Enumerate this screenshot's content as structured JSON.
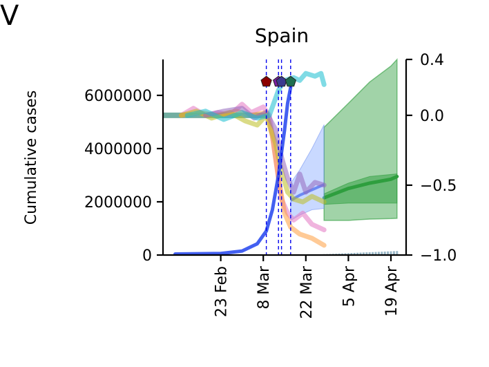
{
  "chart_data": {
    "type": "line",
    "panel_letter": "V",
    "title": "Spain",
    "ylabel": "Cumulative cases",
    "y_left": {
      "min": 0,
      "max": 7350000,
      "ticks": [
        0,
        2000000,
        4000000,
        6000000
      ],
      "tick_labels": [
        "0",
        "2000000",
        "4000000",
        "6000000"
      ]
    },
    "y_right": {
      "min": -1.0,
      "max": 0.4,
      "ticks": [
        -1.0,
        -0.5,
        0.0,
        0.4
      ],
      "tick_labels": [
        "−1.0",
        "−0.5",
        "0.0",
        "0.4"
      ]
    },
    "x": {
      "start": "2020-02-04",
      "end": "2020-04-24",
      "ticks": [
        "2020-02-23",
        "2020-03-08",
        "2020-03-22",
        "2020-04-05",
        "2020-04-19"
      ],
      "tick_labels": [
        "23 Feb",
        "8 Mar",
        "22 Mar",
        "5 Apr",
        "19 Apr"
      ]
    },
    "intervention_dates": [
      "2020-03-09",
      "2020-03-13",
      "2020-03-14",
      "2020-03-17"
    ],
    "intervention_colors": [
      "#8b0000",
      "#7a1fa2",
      "#3b3b8f",
      "#1f6f4f"
    ],
    "cumulative_cases": {
      "color": "#2244ee",
      "points": [
        [
          "2020-02-08",
          40000
        ],
        [
          "2020-02-23",
          60000
        ],
        [
          "2020-03-01",
          150000
        ],
        [
          "2020-03-06",
          420000
        ],
        [
          "2020-03-09",
          900000
        ],
        [
          "2020-03-11",
          1700000
        ],
        [
          "2020-03-13",
          3000000
        ],
        [
          "2020-03-15",
          4700000
        ],
        [
          "2020-03-16",
          5700000
        ],
        [
          "2020-03-17",
          6300000
        ]
      ],
      "lower_band": [
        [
          "2020-03-17",
          1300000
        ],
        [
          "2020-03-20",
          1500000
        ],
        [
          "2020-03-24",
          1700000
        ],
        [
          "2020-03-28",
          1750000
        ]
      ],
      "upper_band": [
        [
          "2020-03-17",
          2700000
        ],
        [
          "2020-03-20",
          3200000
        ],
        [
          "2020-03-24",
          4000000
        ],
        [
          "2020-03-28",
          4900000
        ]
      ],
      "fitted": [
        [
          "2020-03-17",
          2050000
        ],
        [
          "2020-03-20",
          2250000
        ],
        [
          "2020-03-24",
          2450000
        ],
        [
          "2020-03-28",
          2650000
        ]
      ]
    },
    "forecast": {
      "color": "#2e9e3e",
      "lower_band": [
        [
          "2020-03-28",
          1300000
        ],
        [
          "2020-04-05",
          1300000
        ],
        [
          "2020-04-12",
          1350000
        ],
        [
          "2020-04-19",
          1370000
        ],
        [
          "2020-04-21",
          1380000
        ]
      ],
      "upper_band": [
        [
          "2020-03-28",
          4800000
        ],
        [
          "2020-04-05",
          5700000
        ],
        [
          "2020-04-12",
          6500000
        ],
        [
          "2020-04-19",
          7100000
        ],
        [
          "2020-04-21",
          7350000
        ]
      ],
      "inner_lower": [
        [
          "2020-03-28",
          1900000
        ],
        [
          "2020-04-05",
          1950000
        ],
        [
          "2020-04-12",
          1950000
        ],
        [
          "2020-04-21",
          1950000
        ]
      ],
      "inner_upper": [
        [
          "2020-03-28",
          2300000
        ],
        [
          "2020-04-05",
          2700000
        ],
        [
          "2020-04-12",
          2950000
        ],
        [
          "2020-04-21",
          3050000
        ]
      ],
      "median": [
        [
          "2020-03-28",
          2150000
        ],
        [
          "2020-04-05",
          2500000
        ],
        [
          "2020-04-12",
          2700000
        ],
        [
          "2020-04-19",
          2850000
        ],
        [
          "2020-04-21",
          2950000
        ]
      ]
    },
    "daily_bars": {
      "color": "#6f9ab0",
      "dates": [
        "2020-03-26",
        "2020-03-27",
        "2020-03-28",
        "2020-03-29",
        "2020-03-30",
        "2020-03-31",
        "2020-04-01",
        "2020-04-02",
        "2020-04-03",
        "2020-04-04",
        "2020-04-05",
        "2020-04-06",
        "2020-04-07",
        "2020-04-08",
        "2020-04-09",
        "2020-04-10",
        "2020-04-11",
        "2020-04-12",
        "2020-04-13",
        "2020-04-14",
        "2020-04-15",
        "2020-04-16",
        "2020-04-17",
        "2020-04-18",
        "2020-04-19",
        "2020-04-20",
        "2020-04-21"
      ],
      "values": [
        20000,
        25000,
        30000,
        35000,
        40000,
        45000,
        50000,
        55000,
        60000,
        65000,
        70000,
        75000,
        80000,
        85000,
        90000,
        95000,
        100000,
        105000,
        110000,
        115000,
        120000,
        125000,
        130000,
        135000,
        140000,
        145000,
        150000
      ]
    },
    "mobility_series": [
      {
        "color": "#e377c2",
        "points": [
          [
            "2020-02-10",
            0.0
          ],
          [
            "2020-02-14",
            0.05
          ],
          [
            "2020-02-18",
            0.0
          ],
          [
            "2020-02-22",
            0.02
          ],
          [
            "2020-02-26",
            0.0
          ],
          [
            "2020-03-01",
            0.08
          ],
          [
            "2020-03-04",
            0.02
          ],
          [
            "2020-03-08",
            0.06
          ],
          [
            "2020-03-10",
            0.0
          ],
          [
            "2020-03-12",
            -0.3
          ],
          [
            "2020-03-14",
            -0.6
          ],
          [
            "2020-03-16",
            -0.7
          ],
          [
            "2020-03-18",
            -0.75
          ],
          [
            "2020-03-21",
            -0.7
          ],
          [
            "2020-03-24",
            -0.78
          ],
          [
            "2020-03-28",
            -0.82
          ]
        ]
      },
      {
        "color": "#ff9f40",
        "points": [
          [
            "2020-02-10",
            0.0
          ],
          [
            "2020-02-16",
            0.02
          ],
          [
            "2020-02-22",
            0.0
          ],
          [
            "2020-02-28",
            0.03
          ],
          [
            "2020-03-04",
            0.0
          ],
          [
            "2020-03-09",
            0.02
          ],
          [
            "2020-03-11",
            -0.15
          ],
          [
            "2020-03-13",
            -0.45
          ],
          [
            "2020-03-15",
            -0.7
          ],
          [
            "2020-03-17",
            -0.8
          ],
          [
            "2020-03-20",
            -0.85
          ],
          [
            "2020-03-24",
            -0.88
          ],
          [
            "2020-03-28",
            -0.93
          ]
        ]
      },
      {
        "color": "#bcbd22",
        "points": [
          [
            "2020-02-10",
            0.0
          ],
          [
            "2020-02-15",
            0.03
          ],
          [
            "2020-02-20",
            -0.02
          ],
          [
            "2020-02-26",
            0.02
          ],
          [
            "2020-03-02",
            -0.04
          ],
          [
            "2020-03-06",
            -0.07
          ],
          [
            "2020-03-09",
            0.0
          ],
          [
            "2020-03-12",
            -0.2
          ],
          [
            "2020-03-14",
            -0.4
          ],
          [
            "2020-03-16",
            -0.55
          ],
          [
            "2020-03-18",
            -0.6
          ],
          [
            "2020-03-21",
            -0.62
          ],
          [
            "2020-03-24",
            -0.58
          ],
          [
            "2020-03-28",
            -0.62
          ]
        ]
      },
      {
        "color": "#9467bd",
        "points": [
          [
            "2020-02-18",
            0.0
          ],
          [
            "2020-02-24",
            0.03
          ],
          [
            "2020-03-01",
            0.05
          ],
          [
            "2020-03-05",
            -0.02
          ],
          [
            "2020-03-09",
            0.02
          ],
          [
            "2020-03-12",
            -0.1
          ],
          [
            "2020-03-14",
            -0.3
          ],
          [
            "2020-03-16",
            -0.45
          ],
          [
            "2020-03-18",
            -0.55
          ],
          [
            "2020-03-20",
            -0.42
          ],
          [
            "2020-03-22",
            -0.55
          ],
          [
            "2020-03-25",
            -0.48
          ],
          [
            "2020-03-28",
            -0.5
          ]
        ]
      },
      {
        "color": "#17becf",
        "points": [
          [
            "2020-02-12",
            0.0
          ],
          [
            "2020-02-18",
            0.03
          ],
          [
            "2020-02-24",
            -0.03
          ],
          [
            "2020-03-01",
            0.02
          ],
          [
            "2020-03-06",
            -0.02
          ],
          [
            "2020-03-10",
            0.0
          ],
          [
            "2020-03-13",
            0.18
          ],
          [
            "2020-03-15",
            0.25
          ],
          [
            "2020-03-18",
            0.27
          ],
          [
            "2020-03-20",
            0.25
          ],
          [
            "2020-03-22",
            0.3
          ],
          [
            "2020-03-25",
            0.28
          ],
          [
            "2020-03-27",
            0.3
          ],
          [
            "2020-03-28",
            0.22
          ]
        ]
      }
    ],
    "baseline": {
      "color": "#4f9a8a",
      "points": [
        [
          "2020-02-04",
          0.0
        ],
        [
          "2020-03-10",
          0.0
        ]
      ]
    }
  }
}
